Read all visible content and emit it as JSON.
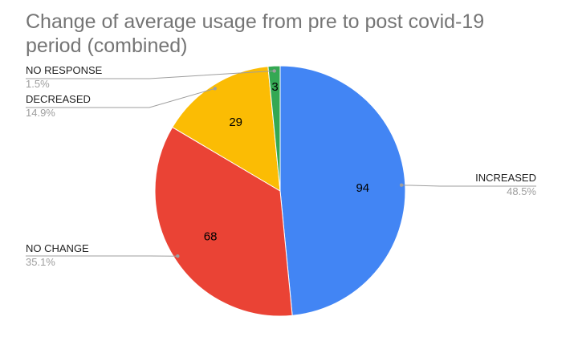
{
  "chart_data": {
    "type": "pie",
    "title": "Change of average usage from pre to post covid-19 period (combined)",
    "start_angle_deg": 0,
    "direction": "clockwise",
    "slices": [
      {
        "label": "INCREASED",
        "value": 94,
        "percent": "48.5%",
        "color": "#4285f4"
      },
      {
        "label": "NO CHANGE",
        "value": 68,
        "percent": "35.1%",
        "color": "#ea4335"
      },
      {
        "label": "DECREASED",
        "value": 29,
        "percent": "14.9%",
        "color": "#fbbc04"
      },
      {
        "label": "NO RESPONSE",
        "value": 3,
        "percent": "1.5%",
        "color": "#34a853"
      }
    ]
  }
}
